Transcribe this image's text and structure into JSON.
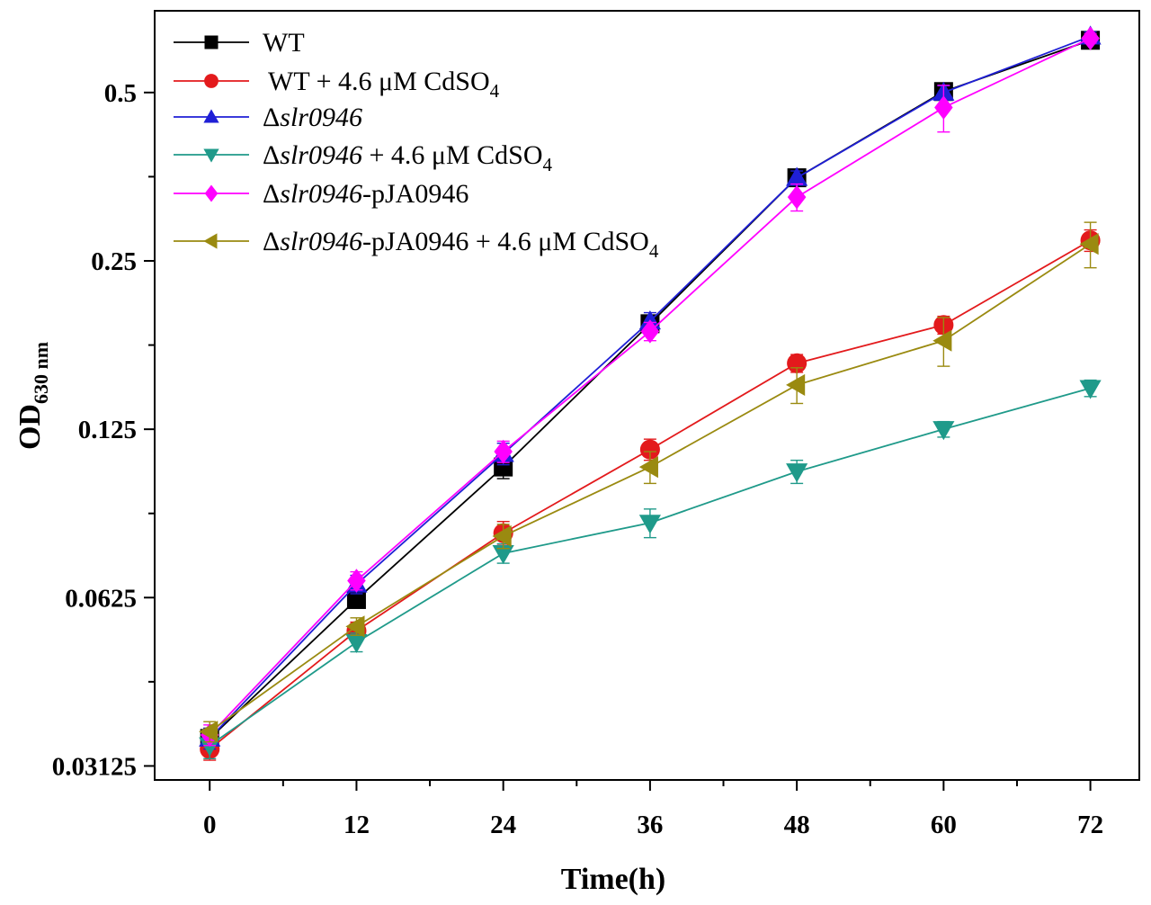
{
  "chart_data": {
    "type": "line",
    "title": "",
    "xlabel": "Time(h)",
    "ylabel": "OD",
    "ylabel_sub": "630 nm",
    "y_scale": "log2",
    "xlim": [
      -4.5,
      76
    ],
    "ylim": [
      0.0295,
      0.7
    ],
    "x": [
      0,
      12,
      24,
      36,
      48,
      60,
      72
    ],
    "x_tick_labels": [
      "0",
      "12",
      "24",
      "36",
      "48",
      "60",
      "72"
    ],
    "y_ticks": [
      0.03125,
      0.0625,
      0.125,
      0.25,
      0.5
    ],
    "y_tick_labels": [
      "0.03125",
      "0.0625",
      "0.125",
      "0.25",
      "0.5"
    ],
    "series": [
      {
        "name": "WT",
        "legend": {
          "prefix": "",
          "italic": "",
          "suffix": "WT",
          "sub": "",
          "after_sub": ""
        },
        "color": "#000000",
        "marker": "square",
        "values": [
          0.035,
          0.062,
          0.107,
          0.193,
          0.352,
          0.502,
          0.62
        ],
        "errors": [
          0.0015,
          0.002,
          0.005,
          0.006,
          0.01,
          0.015,
          0.012
        ]
      },
      {
        "name": "WT + 4.6 μM CdSO4",
        "legend": {
          "prefix": "",
          "italic": "",
          "suffix": "WT + 4.6 μM CdSO",
          "sub": "4",
          "after_sub": ""
        },
        "color": "#e31a1c",
        "marker": "circle",
        "values": [
          0.0335,
          0.0545,
          0.0815,
          0.115,
          0.164,
          0.192,
          0.272
        ],
        "errors": [
          0.0015,
          0.002,
          0.004,
          0.005,
          0.006,
          0.007,
          0.012
        ]
      },
      {
        "name": "Δslr0946",
        "legend": {
          "prefix": "Δ",
          "italic": "slr0946",
          "suffix": "",
          "sub": "",
          "after_sub": ""
        },
        "color": "#1f1fd6",
        "marker": "triangle-up",
        "values": [
          0.035,
          0.066,
          0.113,
          0.195,
          0.352,
          0.5,
          0.63
        ],
        "errors": [
          0.0015,
          0.0025,
          0.005,
          0.007,
          0.01,
          0.014,
          0.012
        ]
      },
      {
        "name": "Δslr0946 + 4.6 μM CdSO4",
        "legend": {
          "prefix": "Δ",
          "italic": "slr0946",
          "suffix": " + 4.6 μM CdSO",
          "sub": "4",
          "after_sub": ""
        },
        "color": "#1f9a8a",
        "marker": "triangle-down",
        "values": [
          0.034,
          0.052,
          0.075,
          0.085,
          0.105,
          0.125,
          0.148
        ],
        "errors": [
          0.0018,
          0.002,
          0.003,
          0.005,
          0.005,
          0.004,
          0.005
        ]
      },
      {
        "name": "Δslr0946-pJA0946",
        "legend": {
          "prefix": "Δ",
          "italic": "slr0946",
          "suffix": "-pJA0946",
          "sub": "",
          "after_sub": ""
        },
        "color": "#ff00ff",
        "marker": "diamond",
        "values": [
          0.0355,
          0.067,
          0.114,
          0.187,
          0.325,
          0.47,
          0.625
        ],
        "errors": [
          0.0015,
          0.0025,
          0.005,
          0.007,
          0.018,
          0.045,
          0.012
        ]
      },
      {
        "name": "Δslr0946-pJA0946 + 4.6 μM CdSO4",
        "legend": {
          "prefix": "Δ",
          "italic": "slr0946",
          "suffix": "-pJA0946 + 4.6 μM CdSO",
          "sub": "4",
          "after_sub": ""
        },
        "color": "#9a8a10",
        "marker": "triangle-left",
        "values": [
          0.036,
          0.0555,
          0.0805,
          0.107,
          0.15,
          0.18,
          0.268
        ],
        "errors": [
          0.0015,
          0.002,
          0.004,
          0.007,
          0.011,
          0.018,
          0.025
        ]
      }
    ]
  }
}
